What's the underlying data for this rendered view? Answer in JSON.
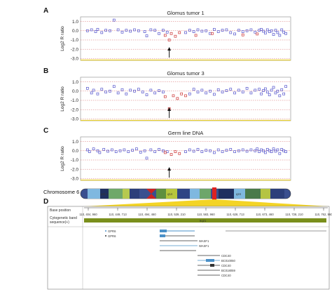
{
  "chart_data": [
    {
      "type": "scatter",
      "panel": "A",
      "title": "Glomus tumor 1",
      "ylabel": "Log2 R ratio",
      "ylim": [
        -3.2,
        1.5
      ],
      "yticks": [
        "1.0",
        "0.0",
        "-1.0",
        "-2.0",
        "-3.0"
      ],
      "arrow_at": 0.42,
      "series": [
        {
          "color": "#5555cc",
          "points": [
            [
              0.02,
              0.0
            ],
            [
              0.04,
              0.1
            ],
            [
              0.06,
              -0.1
            ],
            [
              0.07,
              0.15
            ],
            [
              0.09,
              -0.2
            ],
            [
              0.11,
              0.05
            ],
            [
              0.13,
              0.0
            ],
            [
              0.15,
              1.15
            ],
            [
              0.17,
              0.1
            ],
            [
              0.19,
              -0.15
            ],
            [
              0.21,
              0.05
            ],
            [
              0.23,
              -0.05
            ],
            [
              0.25,
              0.1
            ],
            [
              0.27,
              0.0
            ],
            [
              0.3,
              -0.1
            ],
            [
              0.31,
              -0.55
            ],
            [
              0.33,
              0.1
            ],
            [
              0.35,
              0.05
            ],
            [
              0.37,
              -0.3
            ],
            [
              0.39,
              0.05
            ],
            [
              0.41,
              -0.15
            ],
            [
              0.5,
              -0.2
            ],
            [
              0.52,
              0.05
            ],
            [
              0.54,
              -0.1
            ],
            [
              0.56,
              0.1
            ],
            [
              0.58,
              -0.05
            ],
            [
              0.6,
              0.0
            ],
            [
              0.62,
              -0.3
            ],
            [
              0.64,
              0.15
            ],
            [
              0.66,
              -0.1
            ],
            [
              0.68,
              0.05
            ],
            [
              0.7,
              0.1
            ],
            [
              0.72,
              -0.2
            ],
            [
              0.74,
              -0.35
            ],
            [
              0.76,
              0.05
            ],
            [
              0.78,
              -0.1
            ],
            [
              0.8,
              0.0
            ],
            [
              0.82,
              0.1
            ],
            [
              0.84,
              -0.15
            ],
            [
              0.86,
              0.05
            ],
            [
              0.87,
              0.15
            ],
            [
              0.88,
              -0.05
            ],
            [
              0.89,
              -0.25
            ],
            [
              0.9,
              0.1
            ],
            [
              0.91,
              -0.1
            ],
            [
              0.92,
              0.0
            ],
            [
              0.93,
              -0.4
            ],
            [
              0.94,
              0.05
            ],
            [
              0.95,
              -0.2
            ],
            [
              0.96,
              -0.5
            ],
            [
              0.97,
              0.1
            ],
            [
              0.98,
              -0.15
            ],
            [
              0.99,
              -0.3
            ]
          ]
        },
        {
          "color": "#cc3333",
          "points": [
            [
              0.4,
              -0.5
            ],
            [
              0.42,
              -1.0
            ],
            [
              0.43,
              -0.3
            ],
            [
              0.45,
              -0.6
            ],
            [
              0.47,
              -0.2
            ],
            [
              0.55,
              -0.5
            ],
            [
              0.63,
              -0.3
            ],
            [
              0.78,
              -0.45
            ],
            [
              0.85,
              -0.35
            ]
          ]
        }
      ]
    },
    {
      "type": "scatter",
      "panel": "B",
      "title": "Glomus tumor 3",
      "ylabel": "Log2 R ratio",
      "ylim": [
        -3.2,
        1.5
      ],
      "yticks": [
        "1.0",
        "0.0",
        "-1.0",
        "-2.0",
        "-3.0"
      ],
      "arrow_at": 0.42,
      "series": [
        {
          "color": "#5555cc",
          "points": [
            [
              0.02,
              0.3
            ],
            [
              0.04,
              -0.2
            ],
            [
              0.05,
              0.1
            ],
            [
              0.07,
              -0.3
            ],
            [
              0.09,
              0.2
            ],
            [
              0.11,
              -0.1
            ],
            [
              0.13,
              0.0
            ],
            [
              0.15,
              0.5
            ],
            [
              0.17,
              -0.2
            ],
            [
              0.19,
              0.15
            ],
            [
              0.21,
              -0.3
            ],
            [
              0.23,
              0.1
            ],
            [
              0.25,
              0.0
            ],
            [
              0.27,
              0.2
            ],
            [
              0.29,
              -0.1
            ],
            [
              0.31,
              -0.4
            ],
            [
              0.33,
              0.1
            ],
            [
              0.35,
              -0.2
            ],
            [
              0.37,
              0.05
            ],
            [
              0.39,
              -0.1
            ],
            [
              0.52,
              -0.3
            ],
            [
              0.54,
              0.2
            ],
            [
              0.56,
              -0.1
            ],
            [
              0.58,
              0.1
            ],
            [
              0.6,
              -0.2
            ],
            [
              0.62,
              0.0
            ],
            [
              0.64,
              -0.35
            ],
            [
              0.66,
              0.15
            ],
            [
              0.68,
              -0.1
            ],
            [
              0.7,
              0.05
            ],
            [
              0.72,
              0.2
            ],
            [
              0.74,
              -0.2
            ],
            [
              0.76,
              0.1
            ],
            [
              0.78,
              -0.1
            ],
            [
              0.8,
              0.3
            ],
            [
              0.82,
              -0.2
            ],
            [
              0.84,
              0.1
            ],
            [
              0.86,
              0.2
            ],
            [
              0.87,
              -0.3
            ],
            [
              0.88,
              0.05
            ],
            [
              0.89,
              0.25
            ],
            [
              0.9,
              -0.1
            ],
            [
              0.91,
              -0.4
            ],
            [
              0.92,
              0.1
            ],
            [
              0.93,
              0.4
            ],
            [
              0.94,
              -0.2
            ],
            [
              0.95,
              0.0
            ],
            [
              0.96,
              -0.5
            ],
            [
              0.97,
              0.15
            ],
            [
              0.98,
              -0.3
            ],
            [
              0.99,
              0.5
            ]
          ]
        },
        {
          "color": "#cc3333",
          "points": [
            [
              0.4,
              -0.6
            ],
            [
              0.42,
              -1.9
            ],
            [
              0.44,
              -0.5
            ],
            [
              0.46,
              -0.8
            ],
            [
              0.48,
              -0.3
            ],
            [
              0.5,
              -0.5
            ]
          ]
        }
      ]
    },
    {
      "type": "scatter",
      "panel": "C",
      "title": "Germ line DNA",
      "ylabel": "Log2 R ratio",
      "ylim": [
        -3.2,
        1.5
      ],
      "yticks": [
        "1.0",
        "0.0",
        "-1.0",
        "-2.0",
        "-3.0"
      ],
      "arrow_at": 0.42,
      "series": [
        {
          "color": "#5555cc",
          "points": [
            [
              0.02,
              0.1
            ],
            [
              0.03,
              -0.1
            ],
            [
              0.05,
              0.2
            ],
            [
              0.07,
              0.0
            ],
            [
              0.08,
              -0.2
            ],
            [
              0.1,
              0.15
            ],
            [
              0.12,
              -0.05
            ],
            [
              0.14,
              0.1
            ],
            [
              0.16,
              -0.1
            ],
            [
              0.18,
              0.0
            ],
            [
              0.2,
              0.1
            ],
            [
              0.22,
              -0.1
            ],
            [
              0.24,
              0.05
            ],
            [
              0.26,
              0.2
            ],
            [
              0.28,
              -0.15
            ],
            [
              0.3,
              0.0
            ],
            [
              0.31,
              -0.8
            ],
            [
              0.33,
              0.1
            ],
            [
              0.35,
              -0.1
            ],
            [
              0.37,
              0.15
            ],
            [
              0.39,
              0.0
            ],
            [
              0.41,
              -0.1
            ],
            [
              0.5,
              -0.1
            ],
            [
              0.52,
              0.1
            ],
            [
              0.54,
              -0.05
            ],
            [
              0.56,
              0.15
            ],
            [
              0.58,
              -0.1
            ],
            [
              0.6,
              0.05
            ],
            [
              0.62,
              0.0
            ],
            [
              0.64,
              -0.2
            ],
            [
              0.66,
              0.1
            ],
            [
              0.68,
              -0.1
            ],
            [
              0.7,
              0.05
            ],
            [
              0.72,
              0.15
            ],
            [
              0.74,
              -0.1
            ],
            [
              0.76,
              0.0
            ],
            [
              0.78,
              0.1
            ],
            [
              0.8,
              -0.05
            ],
            [
              0.82,
              0.1
            ],
            [
              0.84,
              0.0
            ],
            [
              0.85,
              0.2
            ],
            [
              0.86,
              -0.1
            ],
            [
              0.87,
              0.1
            ],
            [
              0.88,
              0.0
            ],
            [
              0.89,
              -0.2
            ],
            [
              0.9,
              0.15
            ],
            [
              0.91,
              0.0
            ],
            [
              0.92,
              -0.1
            ],
            [
              0.93,
              0.2
            ],
            [
              0.94,
              -0.05
            ],
            [
              0.95,
              0.1
            ],
            [
              0.96,
              -0.3
            ],
            [
              0.97,
              0.15
            ],
            [
              0.98,
              0.0
            ],
            [
              0.99,
              -0.1
            ]
          ]
        },
        {
          "color": "#cc3333",
          "points": [
            [
              0.4,
              -0.2
            ],
            [
              0.43,
              -0.4
            ],
            [
              0.45,
              -0.1
            ],
            [
              0.47,
              -0.3
            ]
          ]
        }
      ]
    }
  ],
  "panel_letters": [
    "A",
    "B",
    "C",
    "D"
  ],
  "chromosome": {
    "label": "Chromosome 6",
    "band_text": [
      "p22",
      "p21.1",
      "p12",
      "q12",
      "q14",
      "q16",
      "q21",
      "q22",
      "q24",
      "q26"
    ]
  },
  "browser": {
    "base_position_label": "Base position",
    "positions": [
      "110, 404, 960",
      "110, 449, 713",
      "110, 494, 460",
      "110, 539, 210",
      "110, 583, 960",
      "110, 628, 713",
      "110, 673, 460",
      "110, 728, 210",
      "110, 762, 960"
    ],
    "cytoband_label": "Cytogenetic band",
    "sequence_label": "sequence(+)",
    "cytoband_value": "6q21",
    "genes": [
      {
        "name": "GPR6"
      },
      {
        "name": "GPR6"
      },
      {
        "name": "WASF1"
      },
      {
        "name": "WASF1"
      },
      {
        "name": "CDC40"
      },
      {
        "name": "BC010050"
      },
      {
        "name": "CDC40"
      },
      {
        "name": "BC018059"
      },
      {
        "name": "CDC40"
      }
    ]
  },
  "colors": {
    "blue_points": "#5555cc",
    "red_points": "#cc3333",
    "cytoband_green": "#7a8f1c",
    "highlight_yellow": "#f2d21a"
  }
}
